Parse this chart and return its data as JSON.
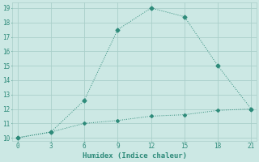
{
  "line1_x": [
    0,
    3,
    6,
    9,
    12,
    15,
    18,
    21
  ],
  "line1_y": [
    10.0,
    10.4,
    12.6,
    17.5,
    19.0,
    18.4,
    15.0,
    12.0
  ],
  "line2_x": [
    0,
    3,
    6,
    9,
    12,
    15,
    18,
    21
  ],
  "line2_y": [
    10.0,
    10.4,
    11.0,
    11.2,
    11.5,
    11.6,
    11.9,
    12.0
  ],
  "color": "#2e8b7a",
  "xlabel": "Humidex (Indice chaleur)",
  "xlim": [
    -0.5,
    21.5
  ],
  "ylim": [
    9.8,
    19.4
  ],
  "xticks": [
    0,
    3,
    6,
    9,
    12,
    15,
    18,
    21
  ],
  "yticks": [
    10,
    11,
    12,
    13,
    14,
    15,
    16,
    17,
    18,
    19
  ],
  "bg_color": "#cce8e4",
  "grid_color": "#aacfca"
}
